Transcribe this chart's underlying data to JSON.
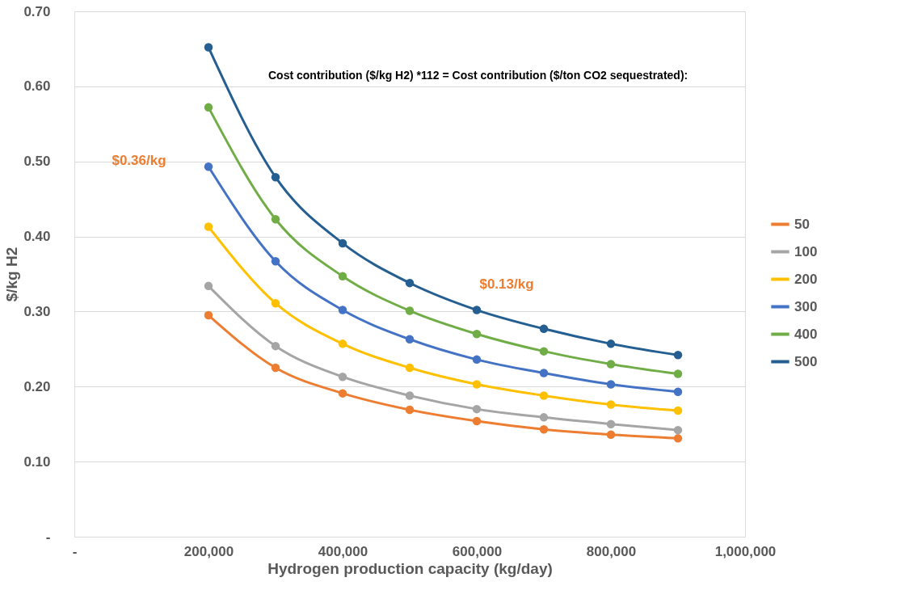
{
  "chart_data": {
    "type": "line",
    "xlabel": "Hydrogen production capacity (kg/day)",
    "ylabel": "$/kg H2",
    "x": [
      200000,
      300000,
      400000,
      500000,
      600000,
      700000,
      800000,
      900000
    ],
    "series": [
      {
        "name": "50",
        "color": "#ed7d31",
        "values": [
          0.295,
          0.225,
          0.191,
          0.169,
          0.154,
          0.143,
          0.136,
          0.131
        ]
      },
      {
        "name": "100",
        "color": "#a5a5a5",
        "values": [
          0.334,
          0.254,
          0.213,
          0.188,
          0.17,
          0.159,
          0.15,
          0.142
        ]
      },
      {
        "name": "200",
        "color": "#ffc000",
        "values": [
          0.413,
          0.311,
          0.257,
          0.225,
          0.203,
          0.188,
          0.176,
          0.168
        ]
      },
      {
        "name": "300",
        "color": "#4472c4",
        "values": [
          0.493,
          0.367,
          0.302,
          0.263,
          0.236,
          0.218,
          0.203,
          0.193
        ]
      },
      {
        "name": "400",
        "color": "#70ad47",
        "values": [
          0.572,
          0.423,
          0.347,
          0.301,
          0.27,
          0.247,
          0.23,
          0.217
        ]
      },
      {
        "name": "500",
        "color": "#255e91",
        "values": [
          0.652,
          0.479,
          0.391,
          0.338,
          0.302,
          0.277,
          0.257,
          0.242
        ]
      }
    ],
    "xlim": [
      0,
      1000000
    ],
    "xticks": [
      {
        "value": 0,
        "label": "-"
      },
      {
        "value": 200000,
        "label": "200,000"
      },
      {
        "value": 400000,
        "label": "400,000"
      },
      {
        "value": 600000,
        "label": "600,000"
      },
      {
        "value": 800000,
        "label": "800,000"
      },
      {
        "value": 1000000,
        "label": "1,000,000"
      }
    ],
    "ylim": [
      0,
      0.7
    ],
    "yticks": [
      {
        "value": 0,
        "label": "-"
      },
      {
        "value": 0.1,
        "label": "0.10"
      },
      {
        "value": 0.2,
        "label": "0.20"
      },
      {
        "value": 0.3,
        "label": "0.30"
      },
      {
        "value": 0.4,
        "label": "0.40"
      },
      {
        "value": 0.5,
        "label": "0.50"
      },
      {
        "value": 0.6,
        "label": "0.60"
      },
      {
        "value": 0.7,
        "label": "0.70"
      }
    ],
    "annotations": [
      "$0.36/kg",
      "$0.13/kg",
      "Cost contribution ($/kg H2) *112 = Cost contribution ($/ton CO2 sequestrated):"
    ],
    "grid": "y",
    "legend": "right",
    "marker": "circle",
    "line_style": "solid"
  }
}
